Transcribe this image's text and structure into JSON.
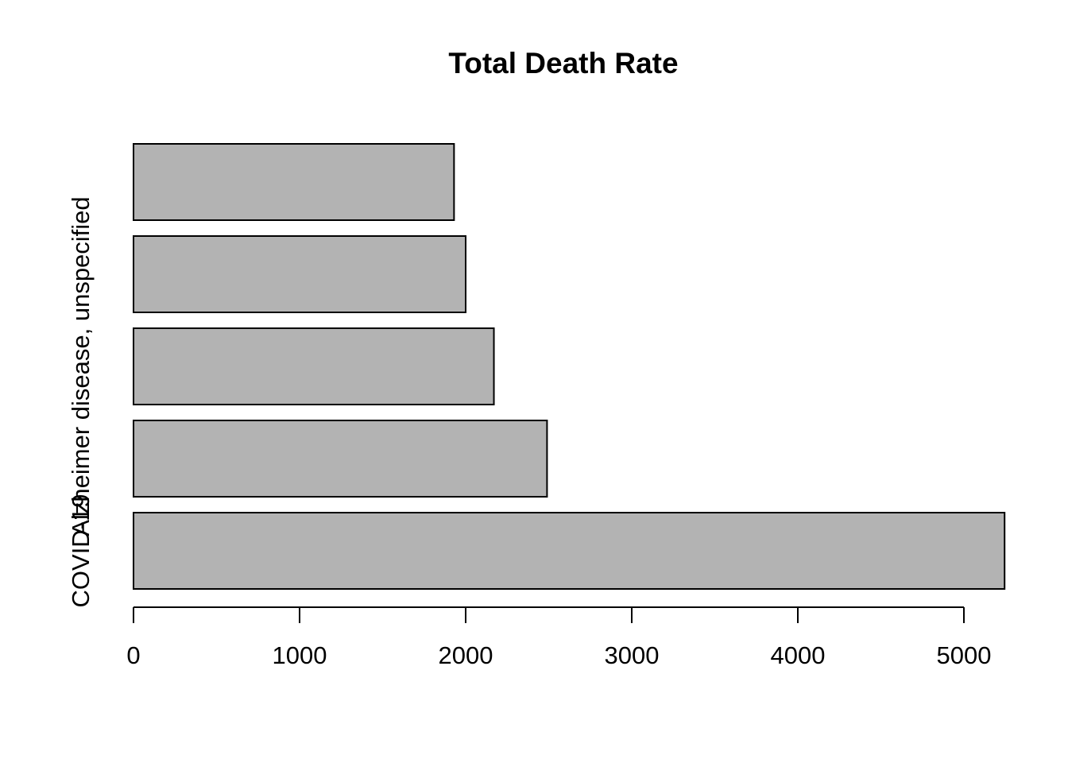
{
  "chart_data": {
    "type": "bar",
    "orientation": "horizontal",
    "title": "Total Death Rate",
    "xlabel": "",
    "ylabel": "",
    "categories": [
      "COVID-19",
      "",
      "Alzheimer disease, unspecified",
      "",
      ""
    ],
    "values": [
      5245,
      2490,
      2170,
      2000,
      1930
    ],
    "xlim": [
      0,
      5245
    ],
    "x_ticks": [
      0,
      1000,
      2000,
      3000,
      4000,
      5000
    ],
    "x_tick_labels": [
      "0",
      "1000",
      "2000",
      "3000",
      "4000",
      "5000"
    ],
    "grid": false,
    "legend": "none",
    "bar_color": "#b3b3b3",
    "bar_border_color": "#000000"
  }
}
